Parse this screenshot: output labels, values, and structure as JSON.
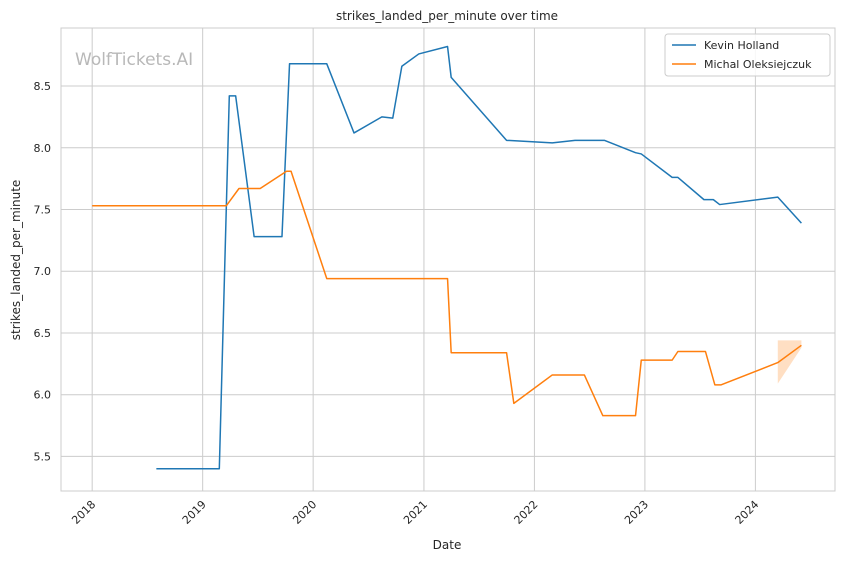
{
  "chart_data": {
    "type": "line",
    "title": "strikes_landed_per_minute over time",
    "xlabel": "Date",
    "ylabel": "strikes_landed_per_minute",
    "watermark": "WolfTickets.AI",
    "x_ticks": [
      "2018",
      "2019",
      "2020",
      "2021",
      "2022",
      "2023",
      "2024"
    ],
    "y_ticks": [
      "5.5",
      "6.0",
      "6.5",
      "7.0",
      "7.5",
      "8.0",
      "8.5"
    ],
    "xlim": [
      "2017-09-20",
      "2024-09-20"
    ],
    "ylim": [
      5.22,
      8.97
    ],
    "grid": true,
    "legend_position": "top-right",
    "series": [
      {
        "name": "Kevin Holland",
        "color": "#1f77b4",
        "points": [
          [
            "2018-08-01",
            5.4
          ],
          [
            "2019-02-25",
            5.4
          ],
          [
            "2019-03-30",
            8.42
          ],
          [
            "2019-04-20",
            8.42
          ],
          [
            "2019-06-20",
            7.28
          ],
          [
            "2019-09-20",
            7.28
          ],
          [
            "2019-10-15",
            8.68
          ],
          [
            "2020-02-15",
            8.68
          ],
          [
            "2020-05-15",
            8.12
          ],
          [
            "2020-08-15",
            8.25
          ],
          [
            "2020-09-20",
            8.24
          ],
          [
            "2020-10-20",
            8.66
          ],
          [
            "2020-12-15",
            8.76
          ],
          [
            "2021-03-20",
            8.82
          ],
          [
            "2021-04-01",
            8.57
          ],
          [
            "2021-10-01",
            8.06
          ],
          [
            "2022-03-01",
            8.04
          ],
          [
            "2022-05-15",
            8.06
          ],
          [
            "2022-07-15",
            8.06
          ],
          [
            "2022-08-20",
            8.06
          ],
          [
            "2022-12-01",
            7.96
          ],
          [
            "2022-12-20",
            7.95
          ],
          [
            "2023-04-01",
            7.76
          ],
          [
            "2023-04-20",
            7.76
          ],
          [
            "2023-07-15",
            7.58
          ],
          [
            "2023-08-15",
            7.58
          ],
          [
            "2023-09-05",
            7.54
          ],
          [
            "2024-03-15",
            7.6
          ],
          [
            "2024-06-01",
            7.39
          ]
        ]
      },
      {
        "name": "Michal Oleksiejczuk",
        "color": "#ff7f0e",
        "points": [
          [
            "2018-01-01",
            7.53
          ],
          [
            "2019-03-01",
            7.53
          ],
          [
            "2019-03-20",
            7.53
          ],
          [
            "2019-05-01",
            7.67
          ],
          [
            "2019-07-10",
            7.67
          ],
          [
            "2019-10-05",
            7.81
          ],
          [
            "2019-10-20",
            7.81
          ],
          [
            "2020-02-15",
            6.94
          ],
          [
            "2021-03-20",
            6.94
          ],
          [
            "2021-04-01",
            6.34
          ],
          [
            "2021-10-01",
            6.34
          ],
          [
            "2021-10-25",
            5.93
          ],
          [
            "2022-03-01",
            6.16
          ],
          [
            "2022-06-15",
            6.16
          ],
          [
            "2022-08-15",
            5.83
          ],
          [
            "2022-12-01",
            5.83
          ],
          [
            "2022-12-20",
            6.28
          ],
          [
            "2023-04-01",
            6.28
          ],
          [
            "2023-04-20",
            6.35
          ],
          [
            "2023-07-20",
            6.35
          ],
          [
            "2023-08-20",
            6.08
          ],
          [
            "2023-09-10",
            6.08
          ],
          [
            "2024-03-15",
            6.26
          ],
          [
            "2024-06-01",
            6.4
          ]
        ],
        "confidence_band": {
          "dates": [
            "2024-03-15",
            "2024-06-01"
          ],
          "upper": [
            6.44,
            6.44
          ],
          "lower": [
            6.09,
            6.38
          ]
        }
      }
    ]
  }
}
